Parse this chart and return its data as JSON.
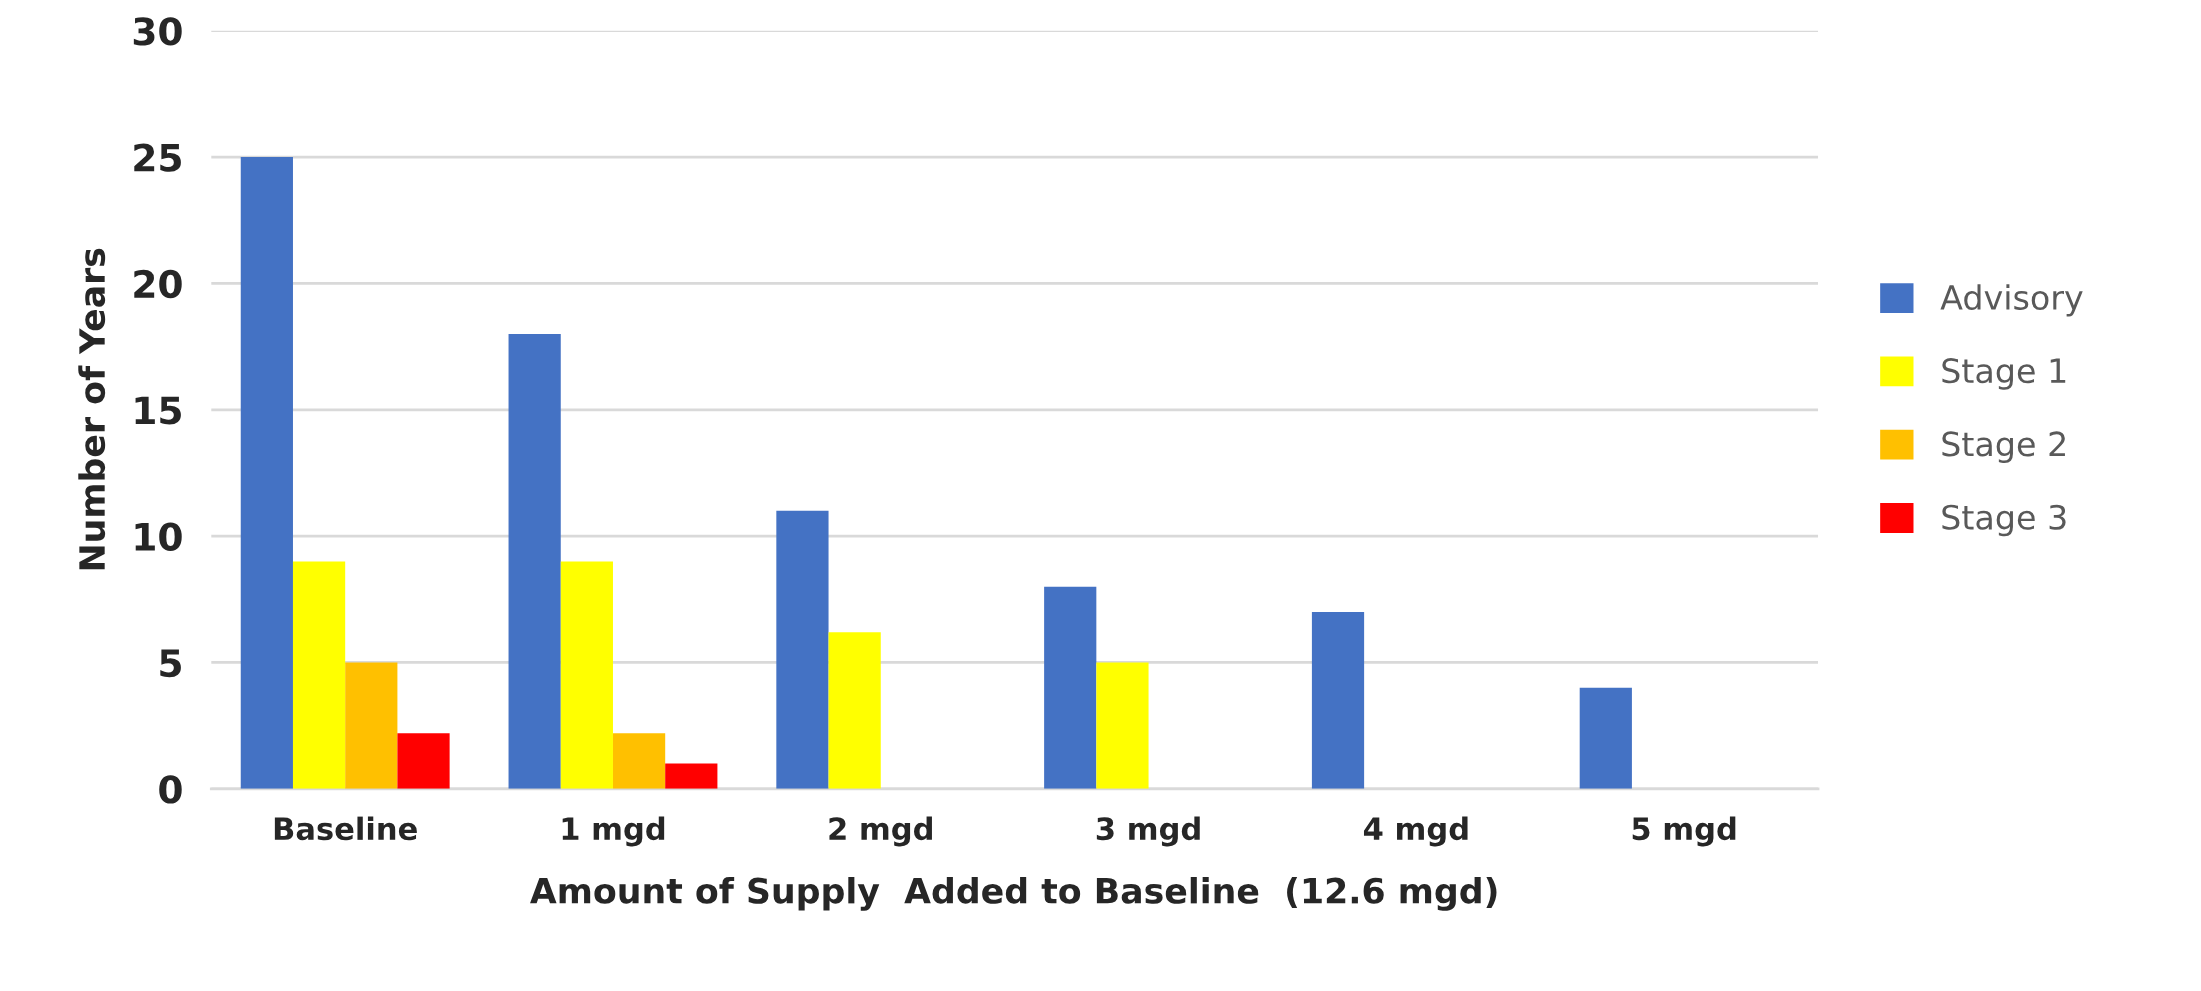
{
  "chart_data": {
    "type": "bar",
    "xlabel": "Amount of Supply  Added to Baseline  (12.6 mgd)",
    "ylabel": "Number of Years",
    "categories": [
      "Baseline",
      "1 mgd",
      "2 mgd",
      "3 mgd",
      "4 mgd",
      "5 mgd"
    ],
    "series": [
      {
        "name": "Advisory",
        "color": "#4472c4",
        "values": [
          25,
          18,
          11,
          8,
          7,
          4
        ]
      },
      {
        "name": "Stage 1",
        "color": "#ffff00",
        "values": [
          9,
          9,
          6.2,
          5,
          null,
          null
        ]
      },
      {
        "name": "Stage 2",
        "color": "#ffc000",
        "values": [
          5,
          2.2,
          null,
          null,
          null,
          null
        ]
      },
      {
        "name": "Stage 3",
        "color": "#ff0000",
        "values": [
          2.2,
          1,
          null,
          null,
          null,
          null
        ]
      }
    ],
    "ylim": [
      0,
      30
    ],
    "yticks": [
      0,
      5,
      10,
      15,
      20,
      25,
      30
    ],
    "grid": "y",
    "legend": "right"
  }
}
